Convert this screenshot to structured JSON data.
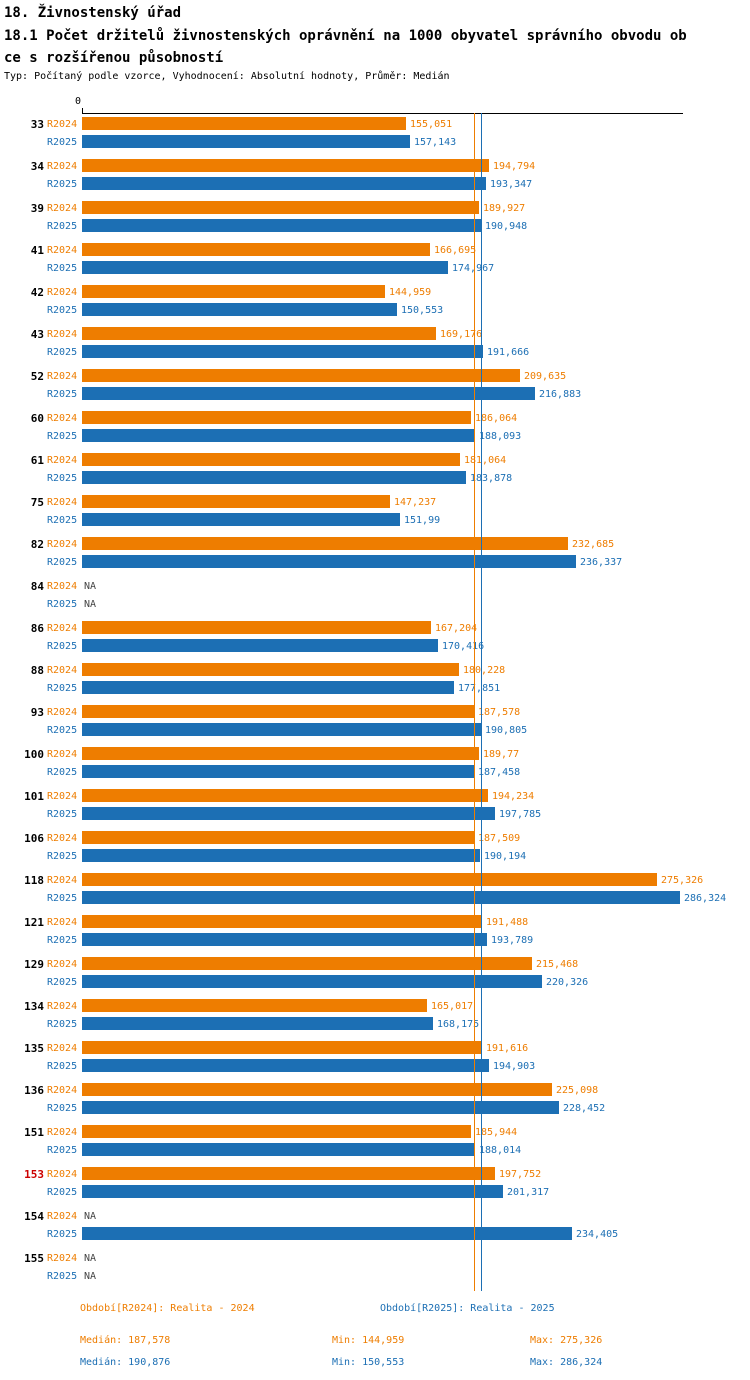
{
  "header": {
    "title": "18. Živnostenský úřad",
    "subtitle_line1": "18.1 Počet držitelů živnostenských oprávnění na 1000 obyvatel správního obvodu ob",
    "subtitle_line2": "ce s rozšířenou působností",
    "meta": "Typ: Počítaný podle vzorce, Vyhodnocení: Absolutní hodnoty, Průměr: Medián"
  },
  "axis": {
    "zero_label": "0"
  },
  "colors": {
    "r2024": "#EE7D00",
    "r2025": "#1C6FB4",
    "highlight": "#CC0000",
    "na_text": "#444444"
  },
  "chart_data": {
    "type": "bar",
    "orientation": "horizontal",
    "title": "18.1 Počet držitelů živnostenských oprávnění na 1000 obyvatel správního obvodu obce s rozšířenou působností",
    "xlim": [
      0,
      286.324
    ],
    "grid": false,
    "legend_position": "bottom",
    "categories": [
      "33",
      "34",
      "39",
      "41",
      "42",
      "43",
      "52",
      "60",
      "61",
      "75",
      "82",
      "84",
      "86",
      "88",
      "93",
      "100",
      "101",
      "106",
      "118",
      "121",
      "129",
      "134",
      "135",
      "136",
      "151",
      "153",
      "154",
      "155"
    ],
    "highlight_category": "153",
    "series": [
      {
        "name": "R2024",
        "color": "#EE7D00",
        "values": [
          155.051,
          194.794,
          189.927,
          166.695,
          144.959,
          169.176,
          209.635,
          186.064,
          181.064,
          147.237,
          232.685,
          null,
          167.204,
          180.228,
          187.578,
          189.77,
          194.234,
          187.509,
          275.326,
          191.488,
          215.468,
          165.017,
          191.616,
          225.098,
          185.944,
          197.752,
          null,
          null
        ],
        "labels": [
          "155,051",
          "194,794",
          "189,927",
          "166,695",
          "144,959",
          "169,176",
          "209,635",
          "186,064",
          "181,064",
          "147,237",
          "232,685",
          "NA",
          "167,204",
          "180,228",
          "187,578",
          "189,77",
          "194,234",
          "187,509",
          "275,326",
          "191,488",
          "215,468",
          "165,017",
          "191,616",
          "225,098",
          "185,944",
          "197,752",
          "NA",
          "NA"
        ]
      },
      {
        "name": "R2025",
        "color": "#1C6FB4",
        "values": [
          157.143,
          193.347,
          190.948,
          174.967,
          150.553,
          191.666,
          216.883,
          188.093,
          183.878,
          151.99,
          236.337,
          null,
          170.416,
          177.851,
          190.805,
          187.458,
          197.785,
          190.194,
          286.324,
          193.789,
          220.326,
          168.175,
          194.903,
          228.452,
          188.014,
          201.317,
          234.405,
          null
        ],
        "labels": [
          "157,143",
          "193,347",
          "190,948",
          "174,967",
          "150,553",
          "191,666",
          "216,883",
          "188,093",
          "183,878",
          "151,99",
          "236,337",
          "NA",
          "170,416",
          "177,851",
          "190,805",
          "187,458",
          "197,785",
          "190,194",
          "286,324",
          "193,789",
          "220,326",
          "168,175",
          "194,903",
          "228,452",
          "188,014",
          "201,317",
          "234,405",
          "NA"
        ]
      }
    ],
    "medians": {
      "R2024": 187.578,
      "R2025": 190.876
    }
  },
  "footer": {
    "legend_r2024": "Období[R2024]: Realita - 2024",
    "legend_r2025": "Období[R2025]: Realita - 2025",
    "median_r2024": "Medián: 187,578",
    "min_r2024": "Min: 144,959",
    "max_r2024": "Max: 275,326",
    "median_r2025": "Medián: 190,876",
    "min_r2025": "Min: 150,553",
    "max_r2025": "Max: 286,324"
  }
}
